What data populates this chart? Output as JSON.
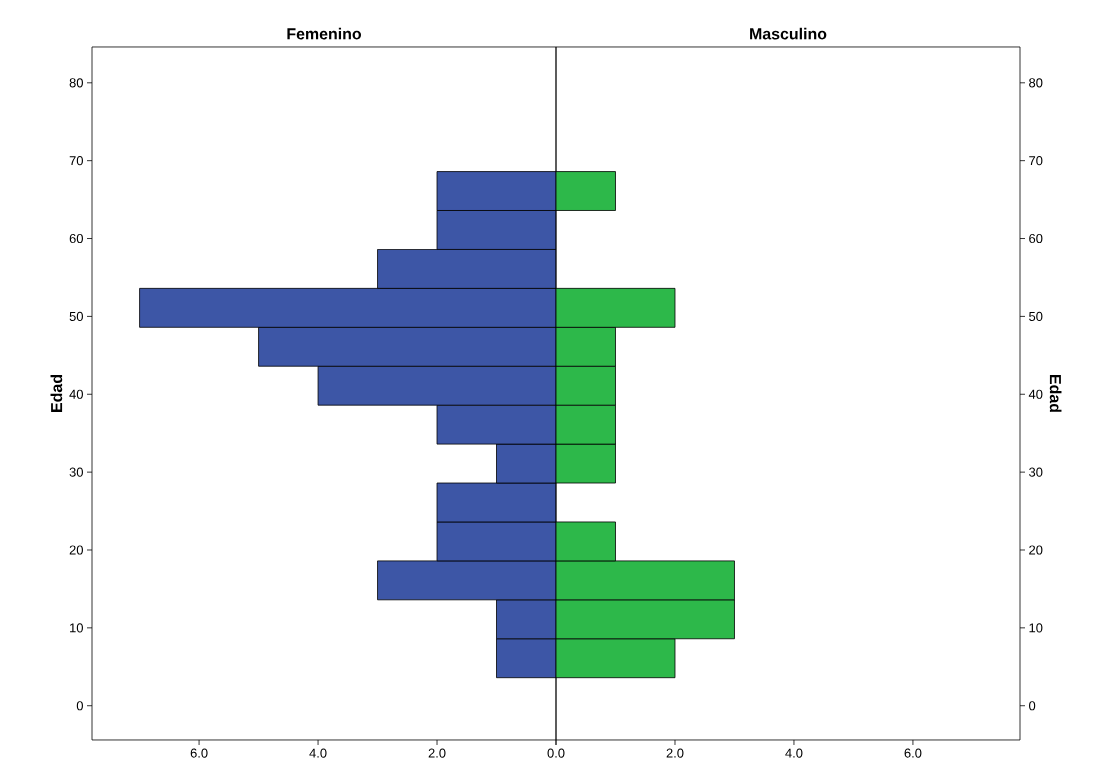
{
  "chart_data": [
    {
      "type": "histogram",
      "orientation": "horizontal",
      "title": "Femenino",
      "ylabel": "Edad",
      "color": "#3d56a6",
      "bins": [
        3.6,
        8.6,
        13.6,
        18.6,
        23.6,
        28.6,
        33.6,
        38.6,
        43.6,
        48.6,
        53.6,
        58.6,
        63.6,
        68.6
      ],
      "values": [
        1,
        1,
        3,
        2,
        2,
        1,
        2,
        4,
        5,
        7,
        3,
        2,
        2
      ],
      "xlim": [
        7.8,
        0
      ],
      "xticks": [
        {
          "value": 6,
          "label": "6.0"
        },
        {
          "value": 4,
          "label": "4.0"
        },
        {
          "value": 2,
          "label": "2.0"
        },
        {
          "value": 0,
          "label": null
        }
      ],
      "ylim": [
        -4.4,
        84.6
      ],
      "yticks": [
        0,
        10,
        20,
        30,
        40,
        50,
        60,
        70,
        80
      ],
      "grid": false
    },
    {
      "type": "histogram",
      "orientation": "horizontal",
      "title": "Masculino",
      "ylabel": "Edad",
      "color": "#2db84a",
      "bins": [
        3.6,
        8.6,
        13.6,
        18.6,
        23.6,
        28.6,
        33.6,
        38.6,
        43.6,
        48.6,
        53.6,
        58.6,
        63.6,
        68.6
      ],
      "values": [
        2,
        3,
        3,
        1,
        0,
        1,
        1,
        1,
        1,
        2,
        0,
        0,
        1
      ],
      "xlim": [
        0,
        7.8
      ],
      "xticks": [
        {
          "value": 0,
          "label": "0.0"
        },
        {
          "value": 2,
          "label": "2.0"
        },
        {
          "value": 4,
          "label": "4.0"
        },
        {
          "value": 6,
          "label": "6.0"
        }
      ],
      "ylim": [
        -4.4,
        84.6
      ],
      "yticks": [
        0,
        10,
        20,
        30,
        40,
        50,
        60,
        70,
        80
      ],
      "grid": false
    }
  ]
}
